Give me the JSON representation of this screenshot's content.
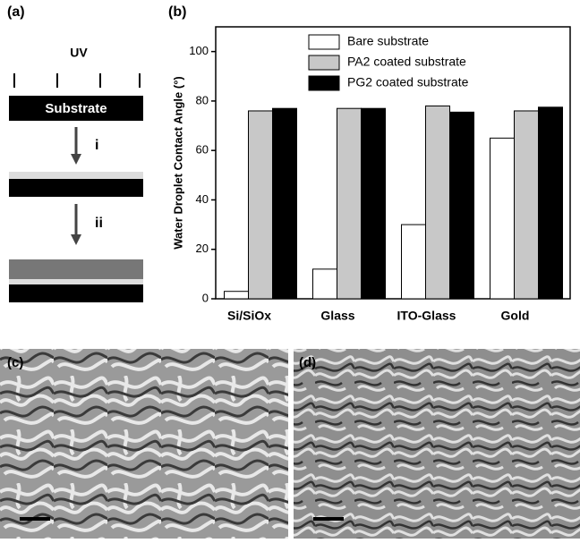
{
  "panels": {
    "a": "(a)",
    "b": "(b)",
    "c": "(c)",
    "d": "(d)"
  },
  "diagram": {
    "uv": "UV",
    "substrate": "Substrate",
    "step1": "i",
    "step2": "ii"
  },
  "chart_data": {
    "type": "bar",
    "y_label": "Water Droplet Contact Angle (°)",
    "categories": [
      "Si/SiOx",
      "Glass",
      "ITO-Glass",
      "Gold"
    ],
    "series": [
      {
        "name": "Bare substrate",
        "color": "#ffffff",
        "values": [
          3,
          12,
          30,
          65
        ]
      },
      {
        "name": "PA2 coated substrate",
        "color": "#c8c8c8",
        "values": [
          76,
          77,
          78,
          76
        ]
      },
      {
        "name": "PG2 coated substrate",
        "color": "#000000",
        "values": [
          77,
          77,
          75.5,
          77.5
        ]
      }
    ],
    "ylim": [
      0,
      110
    ],
    "yticks": [
      0,
      20,
      40,
      60,
      80,
      100
    ],
    "legend": "top"
  }
}
